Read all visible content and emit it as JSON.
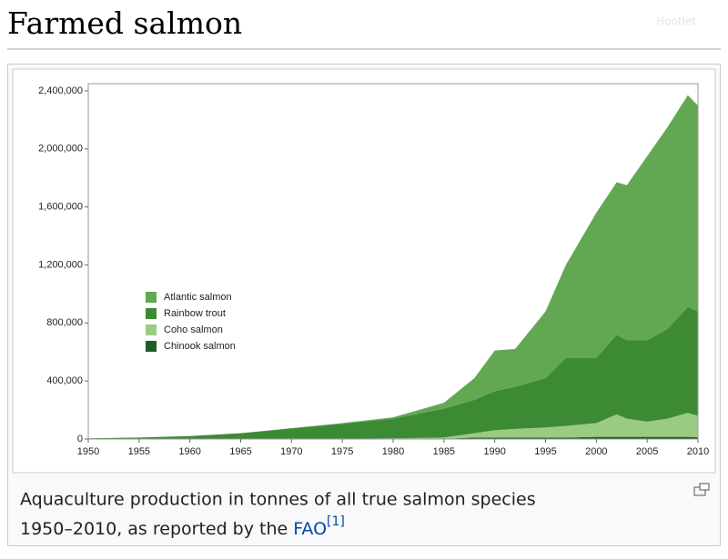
{
  "heading": "Farmed salmon",
  "watermark": "Hootlet",
  "caption": {
    "text_line1": "Aquaculture production in tonnes of all true salmon species",
    "text_line2": "1950–2010, as reported by the",
    "link": "FAO",
    "reference": "[1]"
  },
  "chart_data": {
    "type": "stacked_area",
    "x": [
      1950,
      1955,
      1960,
      1965,
      1970,
      1975,
      1980,
      1985,
      1988,
      1990,
      1992,
      1995,
      1997,
      2000,
      2002,
      2003,
      2005,
      2007,
      2009,
      2010
    ],
    "series": [
      {
        "name": "Atlantic salmon",
        "color": "#62a853",
        "values": [
          0,
          0,
          0,
          0,
          2000,
          5000,
          10000,
          40000,
          150000,
          280000,
          260000,
          460000,
          640000,
          1000000,
          1050000,
          1070000,
          1270000,
          1390000,
          1460000,
          1420000
        ]
      },
      {
        "name": "Rainbow trout",
        "color": "#3d8a35",
        "values": [
          5000,
          10000,
          20000,
          40000,
          73000,
          103000,
          135000,
          200000,
          230000,
          270000,
          290000,
          340000,
          470000,
          450000,
          550000,
          540000,
          560000,
          620000,
          730000,
          720000
        ]
      },
      {
        "name": "Coho salmon",
        "color": "#9acb82",
        "values": [
          0,
          0,
          0,
          0,
          0,
          2000,
          5000,
          8000,
          30000,
          50000,
          60000,
          70000,
          80000,
          95000,
          155000,
          125000,
          105000,
          125000,
          165000,
          148000
        ]
      },
      {
        "name": "Chinook salmon",
        "color": "#1d5e26",
        "values": [
          0,
          0,
          0,
          0,
          0,
          0,
          0,
          2000,
          10000,
          10000,
          10000,
          10000,
          10000,
          15000,
          15000,
          15000,
          15000,
          15000,
          15000,
          12000
        ]
      }
    ],
    "xlim": [
      1950,
      2010
    ],
    "xticks": [
      1950,
      1955,
      1960,
      1965,
      1970,
      1975,
      1980,
      1985,
      1990,
      1995,
      2000,
      2005,
      2010
    ],
    "ylim": [
      0,
      2400000
    ],
    "yticks": [
      0,
      {
        "value": 400000,
        "label": "400,000"
      },
      {
        "value": 800000,
        "label": "800,000"
      },
      {
        "value": 1200000,
        "label": "1,200,000"
      },
      {
        "value": 1600000,
        "label": "1,600,000"
      },
      {
        "value": 2000000,
        "label": "2,000,000"
      },
      {
        "value": 2400000,
        "label": "2,400,000"
      }
    ],
    "grid": false,
    "legend": "left"
  }
}
